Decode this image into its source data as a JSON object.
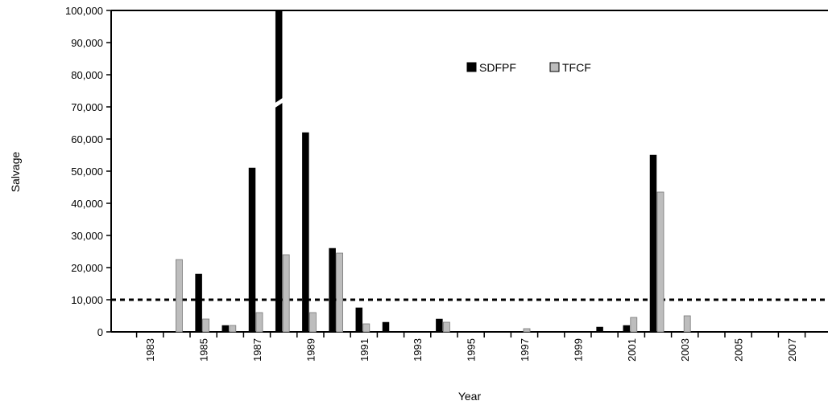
{
  "chart_data": {
    "type": "bar",
    "xlabel": "Year",
    "ylabel": "Salvage",
    "ylim": [
      0,
      100000
    ],
    "yticks": [
      0,
      10000,
      20000,
      30000,
      40000,
      50000,
      60000,
      70000,
      80000,
      90000,
      100000
    ],
    "ytick_labels": [
      "0",
      "10,000",
      "20,000",
      "30,000",
      "40,000",
      "50,000",
      "60,000",
      "70,000",
      "80,000",
      "90,000",
      "100,000"
    ],
    "categories": [
      1982,
      1983,
      1984,
      1985,
      1986,
      1987,
      1988,
      1989,
      1990,
      1991,
      1992,
      1993,
      1994,
      1995,
      1996,
      1997,
      1998,
      1999,
      2000,
      2001,
      2002,
      2003,
      2004,
      2005,
      2006,
      2007,
      2008
    ],
    "xtick_labels": [
      "1983",
      "1985",
      "1987",
      "1989",
      "1991",
      "1993",
      "1995",
      "1997",
      "1999",
      "2001",
      "2003",
      "2005",
      "2007"
    ],
    "series": [
      {
        "name": "SDFPF",
        "color": "#000000",
        "values": [
          0,
          0,
          0,
          18000,
          2000,
          51000,
          100000,
          62000,
          26000,
          7500,
          3000,
          0,
          4000,
          0,
          0,
          0,
          0,
          0,
          1500,
          2000,
          55000,
          0,
          0,
          0,
          0,
          0,
          0
        ]
      },
      {
        "name": "TFCF",
        "color": "#bdbdbd",
        "values": [
          0,
          0,
          22500,
          4000,
          2000,
          6000,
          24000,
          6000,
          24500,
          2500,
          0,
          0,
          3000,
          0,
          0,
          1000,
          0,
          0,
          0,
          4500,
          43500,
          5000,
          0,
          0,
          0,
          0,
          0
        ]
      }
    ],
    "broken_bar": {
      "series": "SDFPF",
      "category": 1988
    },
    "reference_line": {
      "value": 10000,
      "style": "dashed"
    },
    "legend_position": "top-center",
    "grid": false
  }
}
